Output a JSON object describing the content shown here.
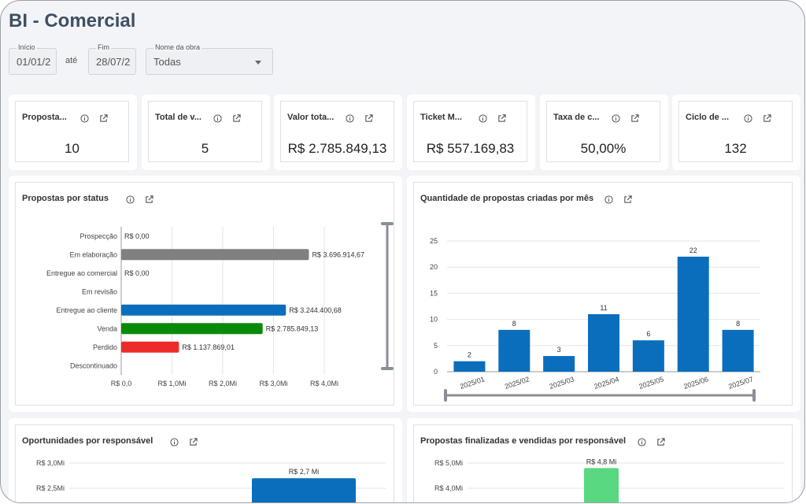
{
  "header": {
    "title": "BI - Comercial"
  },
  "filters": {
    "inicio_label": "Início",
    "inicio_value": "01/01/2",
    "ate": "até",
    "fim_label": "Fim",
    "fim_value": "28/07/2",
    "obra_label": "Nome da obra",
    "obra_value": "Todas"
  },
  "kpis": [
    {
      "label": "Proposta...",
      "value": "10"
    },
    {
      "label": "Total de v...",
      "value": "5"
    },
    {
      "label": "Valor tota...",
      "value": "R$ 2.785.849,13"
    },
    {
      "label": "Ticket M...",
      "value": "R$ 557.169,83"
    },
    {
      "label": "Taxa de c...",
      "value": "50,00%"
    },
    {
      "label": "Ciclo de ...",
      "value": "132"
    }
  ],
  "charts": {
    "status": {
      "title": "Propostas por status",
      "chart_data": {
        "type": "bar",
        "orientation": "horizontal",
        "categories": [
          "Prospecção",
          "Em elaboração",
          "Entregue ao comercial",
          "Em revisão",
          "Entregue ao cliente",
          "Venda",
          "Perdido",
          "Descontinuado"
        ],
        "values": [
          0,
          3696914.67,
          0,
          null,
          3244400.68,
          2785849.13,
          1137869.01,
          null
        ],
        "labels": [
          "R$ 0,00",
          "R$ 3.696.914,67",
          "R$ 0,00",
          "",
          "R$ 3.244.400,68",
          "R$ 2.785.849,13",
          "R$ 1.137.869,01",
          ""
        ],
        "colors": [
          "#808080",
          "#808080",
          "#808080",
          "#808080",
          "#0a6ebd",
          "#0a8a0a",
          "#ee2b2b",
          "#808080"
        ],
        "xticks": [
          "R$ 0,0",
          "R$ 1,0Mi",
          "R$ 2,0Mi",
          "R$ 3,0Mi",
          "R$ 4,0Mi"
        ],
        "xlim": [
          0,
          4000000
        ]
      }
    },
    "monthly": {
      "title": "Quantidade de propostas criadas por mês",
      "chart_data": {
        "type": "bar",
        "categories": [
          "2025/01",
          "2025/02",
          "2025/03",
          "2025/04",
          "2025/05",
          "2025/06",
          "2025/07"
        ],
        "values": [
          2,
          8,
          3,
          11,
          6,
          22,
          8
        ],
        "yticks": [
          "0",
          "5",
          "10",
          "15",
          "20",
          "25"
        ],
        "ylim": [
          0,
          25
        ],
        "color": "#0a6ebd"
      }
    },
    "responsavel": {
      "title": "Oportunidades por responsável",
      "chart_data": {
        "type": "bar",
        "yticks": [
          "R$ 3,0Mi",
          "R$ 2,5Mi"
        ],
        "ytick_values": [
          3.0,
          2.5
        ],
        "bar_value": 2.7,
        "bar_label": "R$ 2,7 Mi",
        "color": "#0a6ebd"
      }
    },
    "vendidas": {
      "title": "Propostas finalizadas e vendidas por responsável",
      "chart_data": {
        "type": "bar",
        "yticks": [
          "R$ 5,0Mi",
          "R$ 4,0Mi"
        ],
        "ytick_values": [
          5.0,
          4.0
        ],
        "bar_value": 4.8,
        "bar_label": "R$ 4,8 Mi",
        "color": "#5ad87f"
      }
    }
  }
}
